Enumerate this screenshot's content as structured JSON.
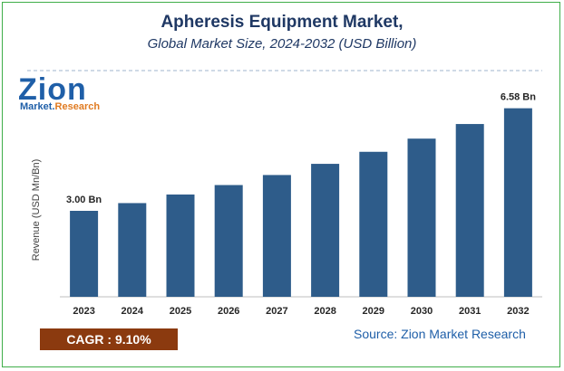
{
  "title": "Apheresis Equipment Market,",
  "subtitle": "Global Market Size, 2024-2032 (USD Billion)",
  "logo": {
    "main": "Zion",
    "sub_left": "Market.",
    "sub_right": "Research"
  },
  "cagr": "CAGR :  9.10%",
  "source": "Source: Zion Market Research",
  "colors": {
    "bar": "#2e5c8a",
    "title": "#1f3864",
    "cagr_bg": "#8b3a0f",
    "border": "#3fae49"
  },
  "chart_data": {
    "type": "bar",
    "categories": [
      "2023",
      "2024",
      "2025",
      "2026",
      "2027",
      "2028",
      "2029",
      "2030",
      "2031",
      "2032"
    ],
    "values": [
      3.0,
      3.27,
      3.57,
      3.9,
      4.25,
      4.64,
      5.06,
      5.52,
      6.03,
      6.58
    ],
    "data_labels": [
      {
        "index": 0,
        "text": "3.00 Bn"
      },
      {
        "index": 9,
        "text": "6.58 Bn"
      }
    ],
    "ylabel": "Revenue (USD Mn/Bn)",
    "ylim": [
      0,
      7.2
    ],
    "grid": false
  }
}
